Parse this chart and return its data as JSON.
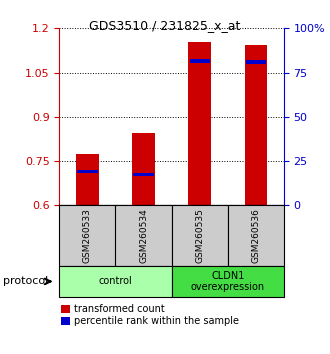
{
  "title": "GDS3510 / 231825_x_at",
  "samples": [
    "GSM260533",
    "GSM260534",
    "GSM260535",
    "GSM260536"
  ],
  "red_values": [
    0.775,
    0.845,
    1.155,
    1.145
  ],
  "blue_values": [
    0.715,
    0.705,
    1.09,
    1.085
  ],
  "ylim": [
    0.6,
    1.2
  ],
  "yticks_left": [
    0.6,
    0.75,
    0.9,
    1.05,
    1.2
  ],
  "yticks_right": [
    0,
    25,
    50,
    75,
    100
  ],
  "ytick_labels_left": [
    "0.6",
    "0.75",
    "0.9",
    "1.05",
    "1.2"
  ],
  "ytick_labels_right": [
    "0",
    "25",
    "50",
    "75",
    "100%"
  ],
  "bar_width": 0.4,
  "bar_color_red": "#cc0000",
  "bar_color_blue": "#0000cc",
  "bar_bottom": 0.6,
  "protocol_label": "protocol",
  "legend_red": "transformed count",
  "legend_blue": "percentile rank within the sample",
  "sample_box_color": "#cccccc",
  "group_labels": [
    "control",
    "CLDN1\noverexpression"
  ],
  "group_colors": [
    "#aaffaa",
    "#44dd44"
  ]
}
